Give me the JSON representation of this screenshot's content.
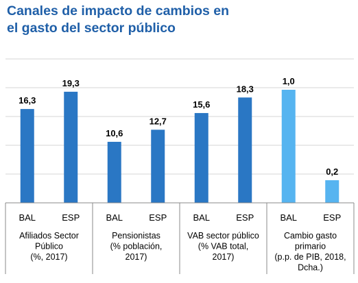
{
  "title_lines": [
    "Canales de impacto de cambios en",
    "el gasto del sector público"
  ],
  "colors": {
    "title": "#1f5fa8",
    "bar_dark": "#2a77c4",
    "bar_light": "#56b4f0",
    "grid": "#d4d4d4"
  },
  "chart_data": {
    "type": "bar",
    "title": "Canales de impacto de cambios en el gasto del sector público",
    "grid": true,
    "legend": "none",
    "groups": [
      {
        "label_lines": [
          "Afiliados Sector",
          "Público",
          "(%, 2017)"
        ],
        "bars": [
          {
            "category": "BAL",
            "value": 16.3,
            "label": "16,3",
            "color": "#2a77c4"
          },
          {
            "category": "ESP",
            "value": 19.3,
            "label": "19,3",
            "color": "#2a77c4"
          }
        ]
      },
      {
        "label_lines": [
          "Pensionistas",
          "(% población,",
          "2017)"
        ],
        "bars": [
          {
            "category": "BAL",
            "value": 10.6,
            "label": "10,6",
            "color": "#2a77c4"
          },
          {
            "category": "ESP",
            "value": 12.7,
            "label": "12,7",
            "color": "#2a77c4"
          }
        ]
      },
      {
        "label_lines": [
          "VAB sector público",
          "(% VAB total,",
          "2017)"
        ],
        "bars": [
          {
            "category": "BAL",
            "value": 15.6,
            "label": "15,6",
            "color": "#2a77c4"
          },
          {
            "category": "ESP",
            "value": 18.3,
            "label": "18,3",
            "color": "#2a77c4"
          }
        ]
      },
      {
        "label_lines": [
          "Cambio gasto",
          "primario",
          "(p.p. de PIB, 2018,",
          "Dcha.)"
        ],
        "axis": "right",
        "bars": [
          {
            "category": "BAL",
            "value": 1.0,
            "label": "1,0",
            "color": "#56b4f0"
          },
          {
            "category": "ESP",
            "value": 0.2,
            "label": "0,2",
            "color": "#56b4f0"
          }
        ]
      }
    ]
  }
}
